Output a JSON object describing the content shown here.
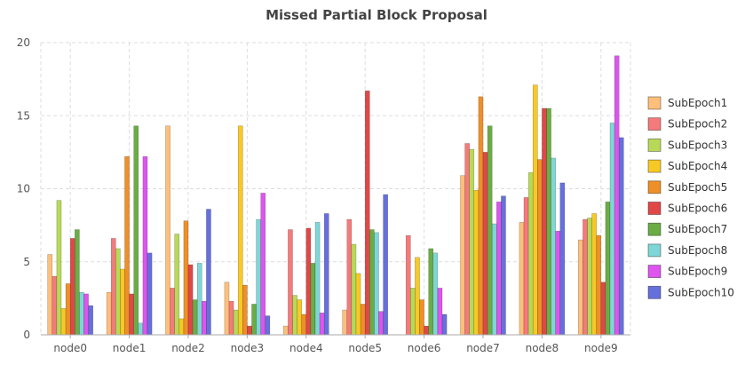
{
  "chart_data": {
    "type": "bar",
    "title": "Missed Partial Block Proposal",
    "xlabel": "",
    "ylabel": "",
    "ylim": [
      0,
      20
    ],
    "yticks": [
      0,
      5,
      10,
      15,
      20
    ],
    "grid": true,
    "legend_position": "right",
    "categories": [
      "node0",
      "node1",
      "node2",
      "node3",
      "node4",
      "node5",
      "node6",
      "node7",
      "node8",
      "node9"
    ],
    "series": [
      {
        "name": "SubEpoch1",
        "color": "#fdbf7a",
        "values": [
          5.5,
          2.9,
          14.3,
          3.6,
          0.6,
          1.7,
          0.0,
          10.9,
          7.7,
          6.5
        ]
      },
      {
        "name": "SubEpoch2",
        "color": "#f57a7a",
        "values": [
          4.0,
          6.6,
          3.2,
          2.3,
          7.2,
          7.9,
          6.8,
          13.1,
          9.4,
          7.9
        ]
      },
      {
        "name": "SubEpoch3",
        "color": "#b8d957",
        "values": [
          9.2,
          5.9,
          6.9,
          1.7,
          2.7,
          6.2,
          3.2,
          12.7,
          11.1,
          8.0
        ]
      },
      {
        "name": "SubEpoch4",
        "color": "#f7c925",
        "values": [
          1.8,
          4.5,
          1.1,
          14.3,
          2.4,
          4.2,
          5.3,
          9.9,
          17.1,
          8.3
        ]
      },
      {
        "name": "SubEpoch5",
        "color": "#ef8f28",
        "values": [
          3.5,
          12.2,
          7.8,
          3.4,
          1.4,
          2.1,
          2.4,
          16.3,
          12.0,
          6.8
        ]
      },
      {
        "name": "SubEpoch6",
        "color": "#e04848",
        "values": [
          6.6,
          2.8,
          4.8,
          0.6,
          7.3,
          16.7,
          0.6,
          12.5,
          15.5,
          3.6
        ]
      },
      {
        "name": "SubEpoch7",
        "color": "#6aad45",
        "values": [
          7.2,
          14.3,
          2.4,
          2.1,
          4.9,
          7.2,
          5.9,
          14.3,
          15.5,
          9.1
        ]
      },
      {
        "name": "SubEpoch8",
        "color": "#7fd6d6",
        "values": [
          2.9,
          0.8,
          4.9,
          7.9,
          7.7,
          7.0,
          5.6,
          7.6,
          12.1,
          14.5
        ]
      },
      {
        "name": "SubEpoch9",
        "color": "#dd55ee",
        "values": [
          2.8,
          12.2,
          2.3,
          9.7,
          1.5,
          1.6,
          3.2,
          9.1,
          7.1,
          19.1
        ]
      },
      {
        "name": "SubEpoch10",
        "color": "#6670dd",
        "values": [
          2.0,
          5.6,
          8.6,
          1.3,
          8.3,
          9.6,
          1.4,
          9.5,
          10.4,
          13.5
        ]
      }
    ]
  }
}
